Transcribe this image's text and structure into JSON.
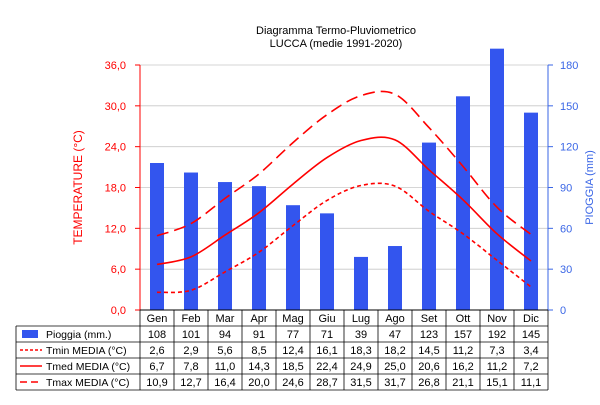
{
  "chart_data": {
    "type": "bar",
    "title": "Diagramma Termo-Pluviometrico",
    "subtitle": "LUCCA (medie 1991-2020)",
    "ylabel_left": "TEMPERATURE (°C)",
    "ylabel_right": "PIOGGIA (mm)",
    "categories": [
      "Gen",
      "Feb",
      "Mar",
      "Apr",
      "Mag",
      "Giu",
      "Lug",
      "Ago",
      "Set",
      "Ott",
      "Nov",
      "Dic"
    ],
    "y_left": {
      "range": [
        0,
        36
      ],
      "ticks": [
        "0,0",
        "6,0",
        "12,0",
        "18,0",
        "24,0",
        "30,0",
        "36,0"
      ],
      "color": "#ff0000"
    },
    "y_right": {
      "range": [
        0,
        180
      ],
      "ticks": [
        "0",
        "30",
        "60",
        "90",
        "120",
        "150",
        "180"
      ],
      "color": "#3a66e6"
    },
    "grid": true,
    "series": [
      {
        "name": "Pioggia (mm.)",
        "kind": "bar",
        "axis": "right",
        "color": "#3355ee",
        "values": [
          108,
          101,
          94,
          91,
          77,
          71,
          39,
          47,
          123,
          157,
          192,
          145
        ],
        "labels": [
          "108",
          "101",
          "94",
          "91",
          "77",
          "71",
          "39",
          "47",
          "123",
          "157",
          "192",
          "145"
        ]
      },
      {
        "name": "Tmin MEDIA (°C)",
        "kind": "line",
        "axis": "left",
        "color": "#ff0000",
        "style": "dotted",
        "values": [
          2.6,
          2.9,
          5.6,
          8.5,
          12.4,
          16.1,
          18.3,
          18.2,
          14.5,
          11.2,
          7.3,
          3.4
        ],
        "labels": [
          "2,6",
          "2,9",
          "5,6",
          "8,5",
          "12,4",
          "16,1",
          "18,3",
          "18,2",
          "14,5",
          "11,2",
          "7,3",
          "3,4"
        ]
      },
      {
        "name": "Tmed MEDIA (°C)",
        "kind": "line",
        "axis": "left",
        "color": "#ff0000",
        "style": "solid",
        "values": [
          6.7,
          7.8,
          11.0,
          14.3,
          18.5,
          22.4,
          24.9,
          25.0,
          20.6,
          16.2,
          11.2,
          7.2
        ],
        "labels": [
          "6,7",
          "7,8",
          "11,0",
          "14,3",
          "18,5",
          "22,4",
          "24,9",
          "25,0",
          "20,6",
          "16,2",
          "11,2",
          "7,2"
        ]
      },
      {
        "name": "Tmax MEDIA (°C)",
        "kind": "line",
        "axis": "left",
        "color": "#ff0000",
        "style": "dashed",
        "values": [
          10.9,
          12.7,
          16.4,
          20.0,
          24.6,
          28.7,
          31.5,
          31.7,
          26.8,
          21.1,
          15.1,
          11.1
        ],
        "labels": [
          "10,9",
          "12,7",
          "16,4",
          "20,0",
          "24,6",
          "28,7",
          "31,5",
          "31,7",
          "26,8",
          "21,1",
          "15,1",
          "11,1"
        ]
      }
    ]
  }
}
